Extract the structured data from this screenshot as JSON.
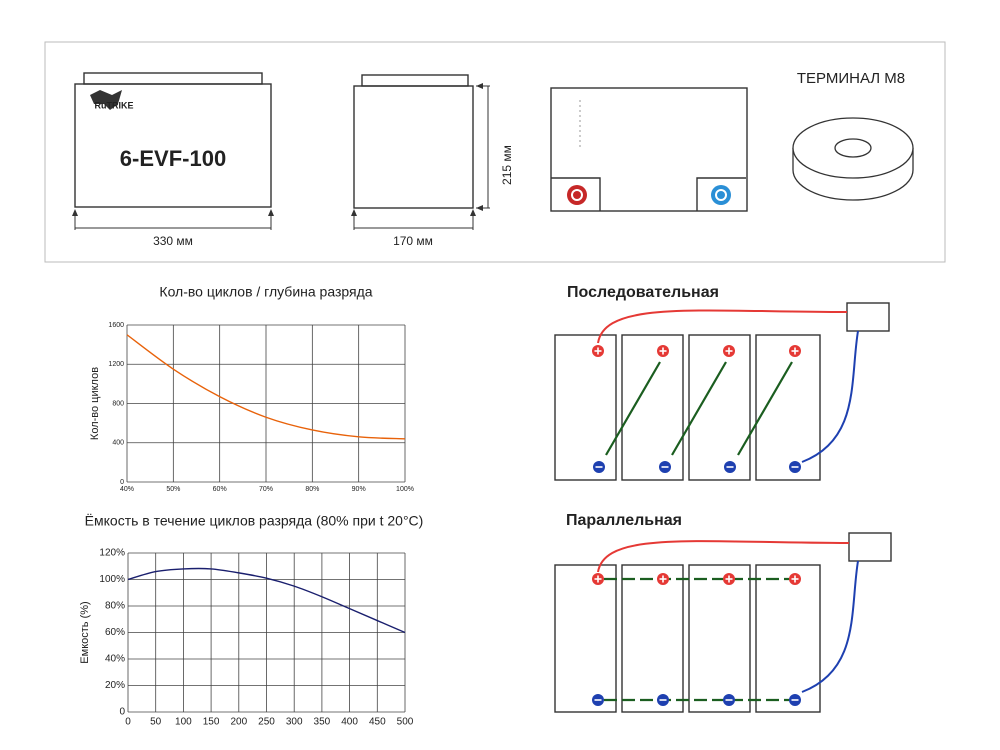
{
  "header": {
    "logo": "RuTRIKE",
    "model": "6-EVF-100",
    "length": "330 мм",
    "width": "170 мм",
    "height": "215 мм",
    "terminal": "ТЕРМИНАЛ М8"
  },
  "chart_data": [
    {
      "type": "line",
      "title": "Кол-во циклов / глубина разряда",
      "y_label": "Кол-во циклов",
      "x": [
        40,
        50,
        60,
        70,
        80,
        90,
        100
      ],
      "series": [
        {
          "color": "#e8620a",
          "values": [
            1500,
            1150,
            870,
            660,
            530,
            460,
            440
          ]
        }
      ],
      "xlim": [
        40,
        100
      ],
      "xticks": [
        {
          "value": 40,
          "label": "40%"
        },
        {
          "value": 50,
          "label": "50%"
        },
        {
          "value": 60,
          "label": "60%"
        },
        {
          "value": 70,
          "label": "70%"
        },
        {
          "value": 80,
          "label": "80%"
        },
        {
          "value": 90,
          "label": "90%"
        },
        {
          "value": 100,
          "label": "100%"
        }
      ],
      "ylim": [
        0,
        1600
      ],
      "yticks": [
        0,
        400,
        800,
        1200,
        1600
      ],
      "grid": true
    },
    {
      "type": "line",
      "title": "Ёмкость в течение циклов разряда (80% при t 20°C)",
      "y_label": "Емкость (%)",
      "x": [
        0,
        50,
        100,
        150,
        200,
        250,
        300,
        350,
        400,
        450,
        500
      ],
      "series": [
        {
          "color": "#1a1f6e",
          "values": [
            100,
            106,
            108,
            108,
            105,
            101,
            95,
            87,
            78,
            69,
            60
          ]
        }
      ],
      "xlim": [
        0,
        500
      ],
      "xticks": [
        0,
        50,
        100,
        150,
        200,
        250,
        300,
        350,
        400,
        450,
        500
      ],
      "ylim": [
        0,
        120
      ],
      "yticks": [
        0,
        {
          "value": 20,
          "label": "20%"
        },
        {
          "value": 40,
          "label": "40%"
        },
        {
          "value": 60,
          "label": "60%"
        },
        {
          "value": 80,
          "label": "80%"
        },
        {
          "value": 100,
          "label": "100%"
        },
        {
          "value": 120,
          "label": "120%"
        }
      ],
      "grid": true
    }
  ],
  "diagrams": {
    "series_title": "Последовательная",
    "parallel_title": "Параллельная"
  }
}
